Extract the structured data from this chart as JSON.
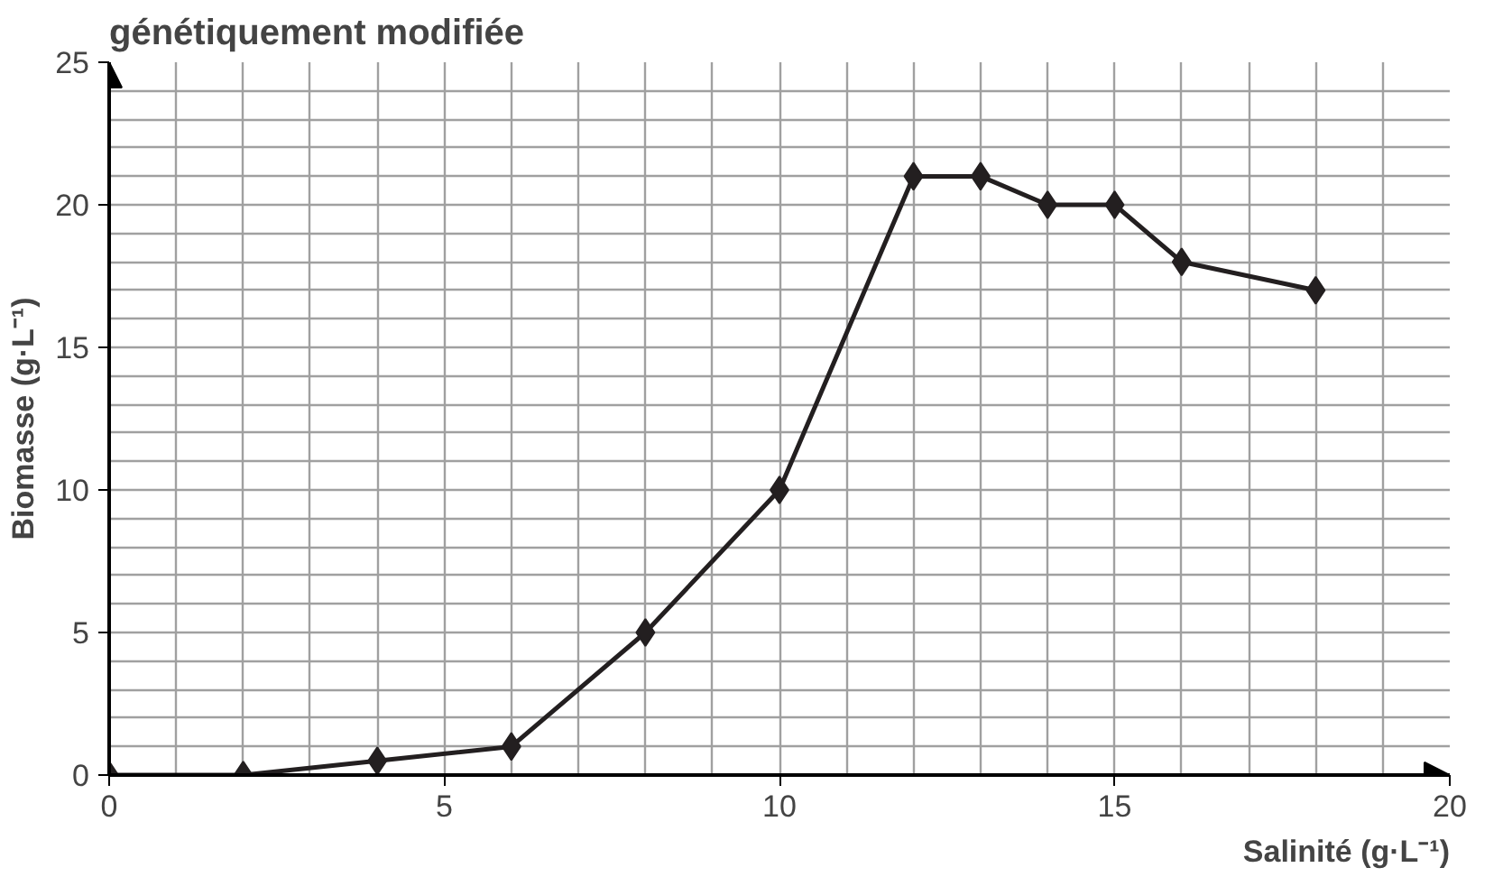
{
  "chart_data": {
    "type": "line",
    "title": "génétiquement modifiée",
    "xlabel": "Salinité (g·L⁻¹)",
    "ylabel": "Biomasse (g·L⁻¹)",
    "x": [
      0,
      2,
      4,
      6,
      8,
      10,
      12,
      13,
      14,
      15,
      16,
      18
    ],
    "series": [
      {
        "color": "#231f20",
        "values": [
          0,
          0,
          0.5,
          1,
          5,
          10,
          21,
          21,
          20,
          20,
          18,
          17
        ]
      }
    ],
    "xlim": [
      0,
      20
    ],
    "ylim": [
      0,
      25
    ],
    "xticks": [
      0,
      5,
      10,
      15,
      20
    ],
    "yticks": [
      0,
      5,
      10,
      15,
      20,
      25
    ],
    "grid": true,
    "marker": "diamond",
    "line_style": "solid"
  }
}
